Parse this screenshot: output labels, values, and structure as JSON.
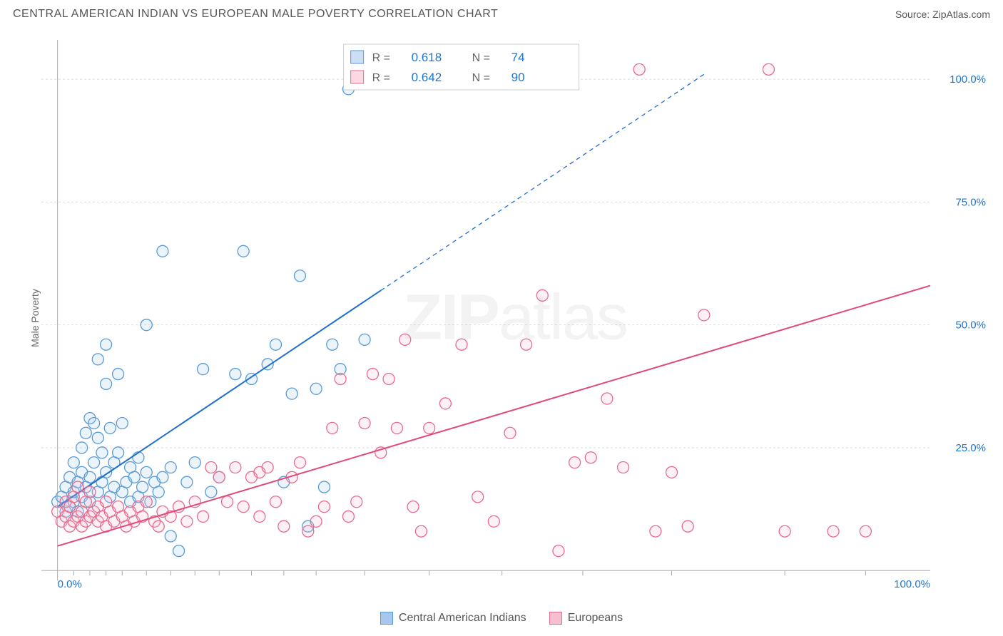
{
  "title": "CENTRAL AMERICAN INDIAN VS EUROPEAN MALE POVERTY CORRELATION CHART",
  "source_label": "Source: ZipAtlas.com",
  "y_axis_label": "Male Poverty",
  "watermark": "ZIPatlas",
  "chart": {
    "type": "scatter",
    "background_color": "#ffffff",
    "grid_color": "#dddddd",
    "axis_color": "#aaaaaa",
    "tick_label_color": "#1976d2",
    "xlim": [
      -2,
      108
    ],
    "ylim": [
      -2,
      108
    ],
    "y_ticks": [
      25.0,
      50.0,
      75.0,
      100.0
    ],
    "y_tick_labels": [
      "25.0%",
      "50.0%",
      "75.0%",
      "100.0%"
    ],
    "x_tick_labels": {
      "start": "0.0%",
      "end": "100.0%"
    },
    "x_minor_ticks": [
      2,
      4,
      6,
      8,
      11,
      14,
      17,
      20,
      24,
      28,
      32,
      38,
      46,
      55,
      65,
      76,
      90,
      100
    ],
    "marker_radius": 8,
    "marker_fill_opacity": 0.22,
    "marker_stroke_width": 1.3,
    "trend_line_width": 2,
    "dash_pattern": "6 5",
    "series": [
      {
        "id": "cai",
        "label": "Central American Indians",
        "color_stroke": "#5a9bd5",
        "color_fill": "#a6c8ec",
        "trend_color": "#1f6fd0",
        "R": "0.618",
        "N": "74",
        "trend_solid": {
          "x1": 0,
          "y1": 13,
          "x2": 40,
          "y2": 57
        },
        "trend_dash": {
          "x1": 40,
          "y1": 57,
          "x2": 80,
          "y2": 101
        },
        "points": [
          [
            0,
            14
          ],
          [
            0.5,
            15
          ],
          [
            1,
            12
          ],
          [
            1,
            17
          ],
          [
            1.5,
            13
          ],
          [
            1.5,
            19
          ],
          [
            2,
            14
          ],
          [
            2,
            16
          ],
          [
            2,
            22
          ],
          [
            2.5,
            12
          ],
          [
            2.5,
            18
          ],
          [
            3,
            15
          ],
          [
            3,
            20
          ],
          [
            3,
            25
          ],
          [
            3.5,
            17
          ],
          [
            3.5,
            28
          ],
          [
            4,
            14
          ],
          [
            4,
            19
          ],
          [
            4,
            31
          ],
          [
            4.5,
            22
          ],
          [
            4.5,
            30
          ],
          [
            5,
            16
          ],
          [
            5,
            27
          ],
          [
            5,
            43
          ],
          [
            5.5,
            18
          ],
          [
            5.5,
            24
          ],
          [
            6,
            20
          ],
          [
            6,
            38
          ],
          [
            6,
            46
          ],
          [
            6.5,
            15
          ],
          [
            6.5,
            29
          ],
          [
            7,
            17
          ],
          [
            7,
            22
          ],
          [
            7.5,
            24
          ],
          [
            7.5,
            40
          ],
          [
            8,
            16
          ],
          [
            8,
            30
          ],
          [
            8.5,
            18
          ],
          [
            9,
            14
          ],
          [
            9,
            21
          ],
          [
            9.5,
            19
          ],
          [
            10,
            15
          ],
          [
            10,
            23
          ],
          [
            10.5,
            17
          ],
          [
            11,
            20
          ],
          [
            11,
            50
          ],
          [
            11.5,
            14
          ],
          [
            12,
            18
          ],
          [
            12.5,
            16
          ],
          [
            13,
            19
          ],
          [
            13,
            65
          ],
          [
            14,
            7
          ],
          [
            14,
            21
          ],
          [
            15,
            4
          ],
          [
            16,
            18
          ],
          [
            17,
            22
          ],
          [
            18,
            41
          ],
          [
            19,
            16
          ],
          [
            20,
            19
          ],
          [
            22,
            40
          ],
          [
            23,
            65
          ],
          [
            24,
            39
          ],
          [
            26,
            42
          ],
          [
            27,
            46
          ],
          [
            28,
            18
          ],
          [
            29,
            36
          ],
          [
            30,
            60
          ],
          [
            31,
            9
          ],
          [
            32,
            37
          ],
          [
            33,
            17
          ],
          [
            34,
            46
          ],
          [
            35,
            41
          ],
          [
            36,
            98
          ],
          [
            38,
            47
          ]
        ]
      },
      {
        "id": "eur",
        "label": "Europeans",
        "color_stroke": "#e86a8f",
        "color_fill": "#f6bfd0",
        "trend_color": "#e04a7a",
        "R": "0.642",
        "N": "90",
        "trend_solid": {
          "x1": 0,
          "y1": 5,
          "x2": 108,
          "y2": 58
        },
        "trend_dash": null,
        "points": [
          [
            0,
            12
          ],
          [
            0.5,
            10
          ],
          [
            1,
            11
          ],
          [
            1,
            14
          ],
          [
            1.5,
            9
          ],
          [
            1.5,
            13
          ],
          [
            2,
            10
          ],
          [
            2,
            15
          ],
          [
            2.5,
            11
          ],
          [
            2.5,
            17
          ],
          [
            3,
            9
          ],
          [
            3,
            12
          ],
          [
            3.5,
            10
          ],
          [
            3.5,
            14
          ],
          [
            4,
            11
          ],
          [
            4,
            16
          ],
          [
            4.5,
            12
          ],
          [
            5,
            10
          ],
          [
            5,
            13
          ],
          [
            5.5,
            11
          ],
          [
            6,
            9
          ],
          [
            6,
            14
          ],
          [
            6.5,
            12
          ],
          [
            7,
            10
          ],
          [
            7.5,
            13
          ],
          [
            8,
            11
          ],
          [
            8.5,
            9
          ],
          [
            9,
            12
          ],
          [
            9.5,
            10
          ],
          [
            10,
            13
          ],
          [
            10.5,
            11
          ],
          [
            11,
            14
          ],
          [
            12,
            10
          ],
          [
            12.5,
            9
          ],
          [
            13,
            12
          ],
          [
            14,
            11
          ],
          [
            15,
            13
          ],
          [
            16,
            10
          ],
          [
            17,
            14
          ],
          [
            18,
            11
          ],
          [
            19,
            21
          ],
          [
            20,
            19
          ],
          [
            21,
            14
          ],
          [
            22,
            21
          ],
          [
            23,
            13
          ],
          [
            24,
            19
          ],
          [
            25,
            20
          ],
          [
            25,
            11
          ],
          [
            26,
            21
          ],
          [
            27,
            14
          ],
          [
            28,
            9
          ],
          [
            29,
            19
          ],
          [
            30,
            22
          ],
          [
            31,
            8
          ],
          [
            32,
            10
          ],
          [
            33,
            13
          ],
          [
            34,
            29
          ],
          [
            35,
            39
          ],
          [
            36,
            11
          ],
          [
            37,
            14
          ],
          [
            38,
            30
          ],
          [
            39,
            40
          ],
          [
            40,
            24
          ],
          [
            41,
            39
          ],
          [
            42,
            29
          ],
          [
            43,
            47
          ],
          [
            44,
            13
          ],
          [
            45,
            8
          ],
          [
            46,
            29
          ],
          [
            48,
            34
          ],
          [
            50,
            46
          ],
          [
            52,
            15
          ],
          [
            54,
            10
          ],
          [
            56,
            28
          ],
          [
            58,
            46
          ],
          [
            60,
            56
          ],
          [
            62,
            4
          ],
          [
            64,
            22
          ],
          [
            66,
            23
          ],
          [
            68,
            35
          ],
          [
            70,
            21
          ],
          [
            72,
            102
          ],
          [
            74,
            8
          ],
          [
            76,
            20
          ],
          [
            78,
            9
          ],
          [
            80,
            52
          ],
          [
            88,
            102
          ],
          [
            90,
            8
          ],
          [
            96,
            8
          ],
          [
            100,
            8
          ]
        ]
      }
    ]
  },
  "stat_legend": {
    "R_label": "R  =",
    "N_label": "N  ="
  },
  "bottom_legend": {
    "items": [
      {
        "label": "Central American Indians",
        "fill": "#a6c8ec",
        "stroke": "#5a9bd5"
      },
      {
        "label": "Europeans",
        "fill": "#f6bfd0",
        "stroke": "#e86a8f"
      }
    ]
  }
}
